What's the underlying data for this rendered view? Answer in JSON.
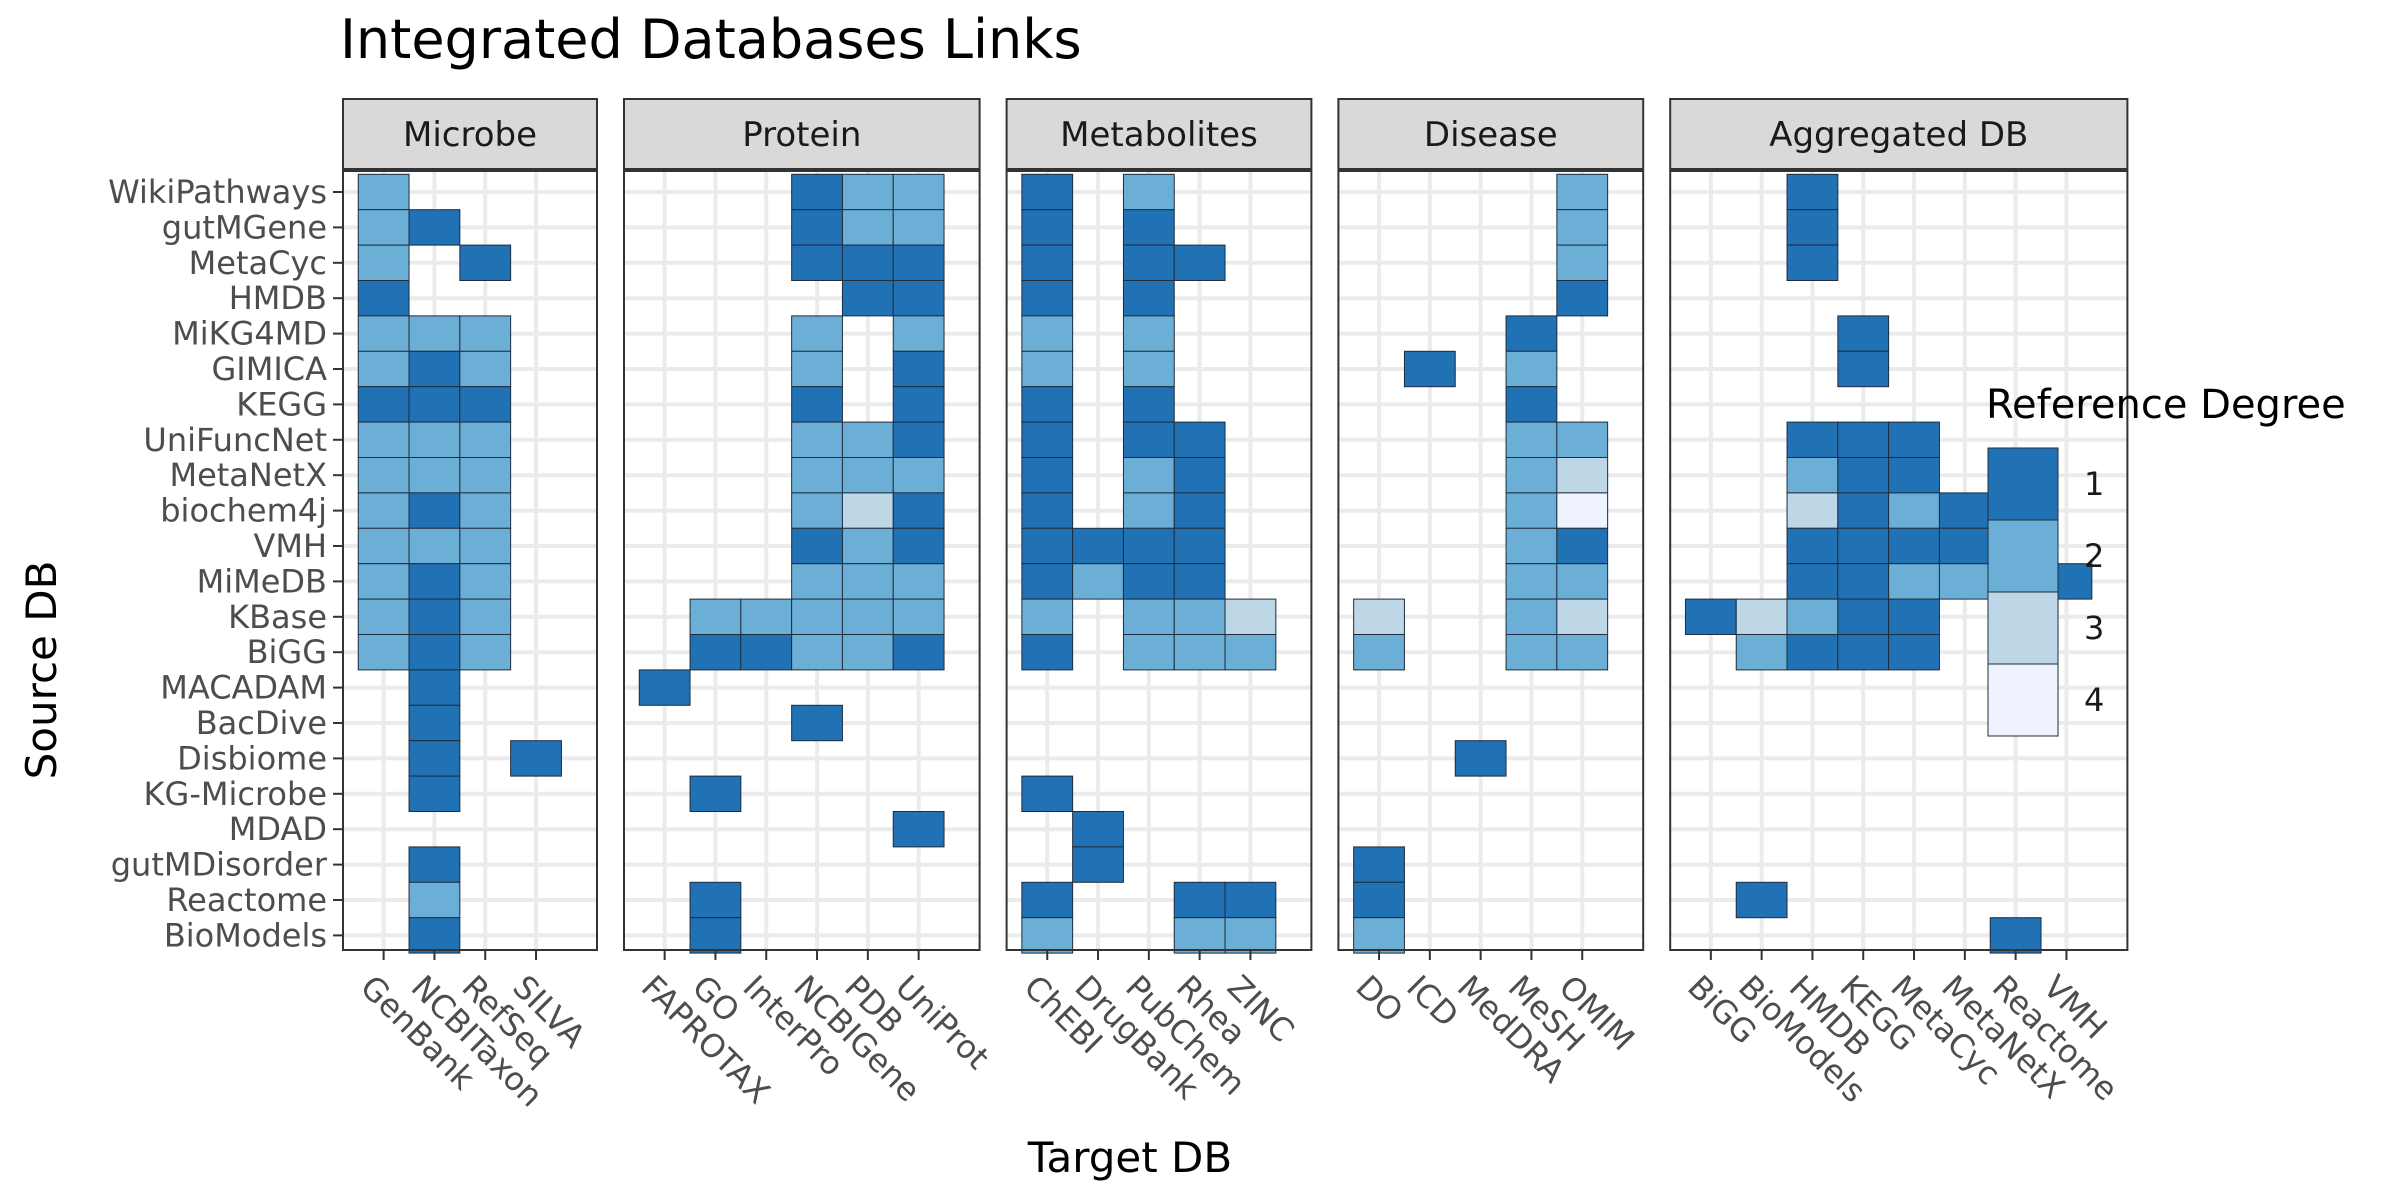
{
  "chart_data": {
    "type": "heatmap",
    "title": "Integrated Databases Links",
    "xlabel": "Target DB",
    "ylabel": "Source DB",
    "legend": {
      "title": "Reference Degree",
      "position": "right",
      "levels": [
        {
          "value": 1,
          "label": "1",
          "color": "#2171b5"
        },
        {
          "value": 2,
          "label": "2",
          "color": "#6baed6"
        },
        {
          "value": 3,
          "label": "3",
          "color": "#bdd7e7"
        },
        {
          "value": 4,
          "label": "4",
          "color": "#eff3ff"
        }
      ]
    },
    "grid": true,
    "rows": [
      "WikiPathways",
      "gutMGene",
      "MetaCyc",
      "HMDB",
      "MiKG4MD",
      "GIMICA",
      "KEGG",
      "UniFuncNet",
      "MetaNetX",
      "biochem4j",
      "VMH",
      "MiMeDB",
      "KBase",
      "BiGG",
      "MACADAM",
      "BacDive",
      "Disbiome",
      "KG-Microbe",
      "MDAD",
      "gutMDisorder",
      "Reactome",
      "BioModels"
    ],
    "facets": [
      {
        "name": "Microbe",
        "columns": [
          "GenBank",
          "NCBITaxon",
          "RefSeq",
          "SILVA"
        ],
        "cells": [
          [
            "WikiPathways",
            "GenBank",
            2
          ],
          [
            "gutMGene",
            "GenBank",
            2
          ],
          [
            "gutMGene",
            "NCBITaxon",
            1
          ],
          [
            "MetaCyc",
            "GenBank",
            2
          ],
          [
            "MetaCyc",
            "RefSeq",
            1
          ],
          [
            "HMDB",
            "GenBank",
            1
          ],
          [
            "MiKG4MD",
            "GenBank",
            2
          ],
          [
            "MiKG4MD",
            "NCBITaxon",
            2
          ],
          [
            "MiKG4MD",
            "RefSeq",
            2
          ],
          [
            "GIMICA",
            "GenBank",
            2
          ],
          [
            "GIMICA",
            "NCBITaxon",
            1
          ],
          [
            "GIMICA",
            "RefSeq",
            2
          ],
          [
            "KEGG",
            "GenBank",
            1
          ],
          [
            "KEGG",
            "NCBITaxon",
            1
          ],
          [
            "KEGG",
            "RefSeq",
            1
          ],
          [
            "UniFuncNet",
            "GenBank",
            2
          ],
          [
            "UniFuncNet",
            "NCBITaxon",
            2
          ],
          [
            "UniFuncNet",
            "RefSeq",
            2
          ],
          [
            "MetaNetX",
            "GenBank",
            2
          ],
          [
            "MetaNetX",
            "NCBITaxon",
            2
          ],
          [
            "MetaNetX",
            "RefSeq",
            2
          ],
          [
            "biochem4j",
            "GenBank",
            2
          ],
          [
            "biochem4j",
            "NCBITaxon",
            1
          ],
          [
            "biochem4j",
            "RefSeq",
            2
          ],
          [
            "VMH",
            "GenBank",
            2
          ],
          [
            "VMH",
            "NCBITaxon",
            2
          ],
          [
            "VMH",
            "RefSeq",
            2
          ],
          [
            "MiMeDB",
            "GenBank",
            2
          ],
          [
            "MiMeDB",
            "NCBITaxon",
            1
          ],
          [
            "MiMeDB",
            "RefSeq",
            2
          ],
          [
            "KBase",
            "GenBank",
            2
          ],
          [
            "KBase",
            "NCBITaxon",
            1
          ],
          [
            "KBase",
            "RefSeq",
            2
          ],
          [
            "BiGG",
            "GenBank",
            2
          ],
          [
            "BiGG",
            "NCBITaxon",
            1
          ],
          [
            "BiGG",
            "RefSeq",
            2
          ],
          [
            "MACADAM",
            "NCBITaxon",
            1
          ],
          [
            "BacDive",
            "NCBITaxon",
            1
          ],
          [
            "Disbiome",
            "NCBITaxon",
            1
          ],
          [
            "Disbiome",
            "SILVA",
            1
          ],
          [
            "KG-Microbe",
            "NCBITaxon",
            1
          ],
          [
            "gutMDisorder",
            "NCBITaxon",
            1
          ],
          [
            "Reactome",
            "NCBITaxon",
            2
          ],
          [
            "BioModels",
            "NCBITaxon",
            1
          ]
        ]
      },
      {
        "name": "Protein",
        "columns": [
          "FAPROTAX",
          "GO",
          "InterPro",
          "NCBIGene",
          "PDB",
          "UniProt"
        ],
        "cells": [
          [
            "WikiPathways",
            "NCBIGene",
            1
          ],
          [
            "WikiPathways",
            "PDB",
            2
          ],
          [
            "WikiPathways",
            "UniProt",
            2
          ],
          [
            "gutMGene",
            "NCBIGene",
            1
          ],
          [
            "gutMGene",
            "PDB",
            2
          ],
          [
            "gutMGene",
            "UniProt",
            2
          ],
          [
            "MetaCyc",
            "NCBIGene",
            1
          ],
          [
            "MetaCyc",
            "PDB",
            1
          ],
          [
            "MetaCyc",
            "UniProt",
            1
          ],
          [
            "HMDB",
            "PDB",
            1
          ],
          [
            "HMDB",
            "UniProt",
            1
          ],
          [
            "MiKG4MD",
            "NCBIGene",
            2
          ],
          [
            "MiKG4MD",
            "UniProt",
            2
          ],
          [
            "GIMICA",
            "NCBIGene",
            2
          ],
          [
            "GIMICA",
            "UniProt",
            1
          ],
          [
            "KEGG",
            "NCBIGene",
            1
          ],
          [
            "KEGG",
            "UniProt",
            1
          ],
          [
            "UniFuncNet",
            "NCBIGene",
            2
          ],
          [
            "UniFuncNet",
            "PDB",
            2
          ],
          [
            "UniFuncNet",
            "UniProt",
            1
          ],
          [
            "MetaNetX",
            "NCBIGene",
            2
          ],
          [
            "MetaNetX",
            "PDB",
            2
          ],
          [
            "MetaNetX",
            "UniProt",
            2
          ],
          [
            "biochem4j",
            "NCBIGene",
            2
          ],
          [
            "biochem4j",
            "PDB",
            3
          ],
          [
            "biochem4j",
            "UniProt",
            1
          ],
          [
            "VMH",
            "NCBIGene",
            1
          ],
          [
            "VMH",
            "PDB",
            2
          ],
          [
            "VMH",
            "UniProt",
            1
          ],
          [
            "MiMeDB",
            "NCBIGene",
            2
          ],
          [
            "MiMeDB",
            "PDB",
            2
          ],
          [
            "MiMeDB",
            "UniProt",
            2
          ],
          [
            "KBase",
            "GO",
            2
          ],
          [
            "KBase",
            "InterPro",
            2
          ],
          [
            "KBase",
            "NCBIGene",
            2
          ],
          [
            "KBase",
            "PDB",
            2
          ],
          [
            "KBase",
            "UniProt",
            2
          ],
          [
            "BiGG",
            "GO",
            1
          ],
          [
            "BiGG",
            "InterPro",
            1
          ],
          [
            "BiGG",
            "NCBIGene",
            2
          ],
          [
            "BiGG",
            "PDB",
            2
          ],
          [
            "BiGG",
            "UniProt",
            1
          ],
          [
            "MACADAM",
            "FAPROTAX",
            1
          ],
          [
            "BacDive",
            "NCBIGene",
            1
          ],
          [
            "KG-Microbe",
            "GO",
            1
          ],
          [
            "MDAD",
            "UniProt",
            1
          ],
          [
            "Reactome",
            "GO",
            1
          ],
          [
            "BioModels",
            "GO",
            1
          ]
        ]
      },
      {
        "name": "Metabolites",
        "columns": [
          "ChEBI",
          "DrugBank",
          "PubChem",
          "Rhea",
          "ZINC"
        ],
        "cells": [
          [
            "WikiPathways",
            "ChEBI",
            1
          ],
          [
            "WikiPathways",
            "PubChem",
            2
          ],
          [
            "gutMGene",
            "ChEBI",
            1
          ],
          [
            "gutMGene",
            "PubChem",
            1
          ],
          [
            "MetaCyc",
            "ChEBI",
            1
          ],
          [
            "MetaCyc",
            "PubChem",
            1
          ],
          [
            "MetaCyc",
            "Rhea",
            1
          ],
          [
            "HMDB",
            "ChEBI",
            1
          ],
          [
            "HMDB",
            "PubChem",
            1
          ],
          [
            "MiKG4MD",
            "ChEBI",
            2
          ],
          [
            "MiKG4MD",
            "PubChem",
            2
          ],
          [
            "GIMICA",
            "ChEBI",
            2
          ],
          [
            "GIMICA",
            "PubChem",
            2
          ],
          [
            "KEGG",
            "ChEBI",
            1
          ],
          [
            "KEGG",
            "PubChem",
            1
          ],
          [
            "UniFuncNet",
            "ChEBI",
            1
          ],
          [
            "UniFuncNet",
            "PubChem",
            1
          ],
          [
            "UniFuncNet",
            "Rhea",
            1
          ],
          [
            "MetaNetX",
            "ChEBI",
            1
          ],
          [
            "MetaNetX",
            "PubChem",
            2
          ],
          [
            "MetaNetX",
            "Rhea",
            1
          ],
          [
            "biochem4j",
            "ChEBI",
            1
          ],
          [
            "biochem4j",
            "PubChem",
            2
          ],
          [
            "biochem4j",
            "Rhea",
            1
          ],
          [
            "VMH",
            "ChEBI",
            1
          ],
          [
            "VMH",
            "DrugBank",
            1
          ],
          [
            "VMH",
            "PubChem",
            1
          ],
          [
            "VMH",
            "Rhea",
            1
          ],
          [
            "MiMeDB",
            "ChEBI",
            1
          ],
          [
            "MiMeDB",
            "DrugBank",
            2
          ],
          [
            "MiMeDB",
            "PubChem",
            1
          ],
          [
            "MiMeDB",
            "Rhea",
            1
          ],
          [
            "KBase",
            "ChEBI",
            2
          ],
          [
            "KBase",
            "PubChem",
            2
          ],
          [
            "KBase",
            "Rhea",
            2
          ],
          [
            "KBase",
            "ZINC",
            3
          ],
          [
            "BiGG",
            "ChEBI",
            1
          ],
          [
            "BiGG",
            "PubChem",
            2
          ],
          [
            "BiGG",
            "Rhea",
            2
          ],
          [
            "BiGG",
            "ZINC",
            2
          ],
          [
            "KG-Microbe",
            "ChEBI",
            1
          ],
          [
            "MDAD",
            "DrugBank",
            1
          ],
          [
            "gutMDisorder",
            "DrugBank",
            1
          ],
          [
            "Reactome",
            "ChEBI",
            1
          ],
          [
            "Reactome",
            "Rhea",
            1
          ],
          [
            "Reactome",
            "ZINC",
            1
          ],
          [
            "BioModels",
            "ChEBI",
            2
          ],
          [
            "BioModels",
            "Rhea",
            2
          ],
          [
            "BioModels",
            "ZINC",
            2
          ]
        ]
      },
      {
        "name": "Disease",
        "columns": [
          "DO",
          "ICD",
          "MedDRA",
          "MeSH",
          "OMIM"
        ],
        "cells": [
          [
            "WikiPathways",
            "OMIM",
            2
          ],
          [
            "gutMGene",
            "OMIM",
            2
          ],
          [
            "MetaCyc",
            "OMIM",
            2
          ],
          [
            "HMDB",
            "OMIM",
            1
          ],
          [
            "MiKG4MD",
            "MeSH",
            1
          ],
          [
            "GIMICA",
            "ICD",
            1
          ],
          [
            "GIMICA",
            "MeSH",
            2
          ],
          [
            "KEGG",
            "MeSH",
            1
          ],
          [
            "UniFuncNet",
            "MeSH",
            2
          ],
          [
            "UniFuncNet",
            "OMIM",
            2
          ],
          [
            "MetaNetX",
            "MeSH",
            2
          ],
          [
            "MetaNetX",
            "OMIM",
            3
          ],
          [
            "biochem4j",
            "MeSH",
            2
          ],
          [
            "biochem4j",
            "OMIM",
            4
          ],
          [
            "VMH",
            "MeSH",
            2
          ],
          [
            "VMH",
            "OMIM",
            1
          ],
          [
            "MiMeDB",
            "MeSH",
            2
          ],
          [
            "MiMeDB",
            "OMIM",
            2
          ],
          [
            "KBase",
            "DO",
            3
          ],
          [
            "KBase",
            "MeSH",
            2
          ],
          [
            "KBase",
            "OMIM",
            3
          ],
          [
            "BiGG",
            "DO",
            2
          ],
          [
            "BiGG",
            "MeSH",
            2
          ],
          [
            "BiGG",
            "OMIM",
            2
          ],
          [
            "Disbiome",
            "MedDRA",
            1
          ],
          [
            "gutMDisorder",
            "DO",
            1
          ],
          [
            "Reactome",
            "DO",
            1
          ],
          [
            "BioModels",
            "DO",
            2
          ]
        ]
      },
      {
        "name": "Aggregated DB",
        "columns": [
          "BiGG",
          "BioModels",
          "HMDB",
          "KEGG",
          "MetaCyc",
          "MetaNetX",
          "Reactome",
          "VMH"
        ],
        "cells": [
          [
            "WikiPathways",
            "HMDB",
            1
          ],
          [
            "gutMGene",
            "HMDB",
            1
          ],
          [
            "MetaCyc",
            "HMDB",
            1
          ],
          [
            "MiKG4MD",
            "KEGG",
            1
          ],
          [
            "GIMICA",
            "KEGG",
            1
          ],
          [
            "UniFuncNet",
            "HMDB",
            1
          ],
          [
            "UniFuncNet",
            "KEGG",
            1
          ],
          [
            "UniFuncNet",
            "MetaCyc",
            1
          ],
          [
            "MetaNetX",
            "HMDB",
            2
          ],
          [
            "MetaNetX",
            "KEGG",
            1
          ],
          [
            "MetaNetX",
            "MetaCyc",
            1
          ],
          [
            "biochem4j",
            "HMDB",
            3
          ],
          [
            "biochem4j",
            "KEGG",
            1
          ],
          [
            "biochem4j",
            "MetaCyc",
            2
          ],
          [
            "biochem4j",
            "MetaNetX",
            1
          ],
          [
            "VMH",
            "HMDB",
            1
          ],
          [
            "VMH",
            "KEGG",
            1
          ],
          [
            "VMH",
            "MetaCyc",
            1
          ],
          [
            "VMH",
            "MetaNetX",
            1
          ],
          [
            "MiMeDB",
            "HMDB",
            1
          ],
          [
            "MiMeDB",
            "KEGG",
            1
          ],
          [
            "MiMeDB",
            "MetaCyc",
            2
          ],
          [
            "MiMeDB",
            "MetaNetX",
            2
          ],
          [
            "MiMeDB",
            "VMH",
            1
          ],
          [
            "KBase",
            "BiGG",
            1
          ],
          [
            "KBase",
            "BioModels",
            3
          ],
          [
            "KBase",
            "HMDB",
            2
          ],
          [
            "KBase",
            "KEGG",
            1
          ],
          [
            "KBase",
            "MetaCyc",
            1
          ],
          [
            "KBase",
            "Reactome",
            2
          ],
          [
            "BiGG",
            "BioModels",
            2
          ],
          [
            "BiGG",
            "HMDB",
            1
          ],
          [
            "BiGG",
            "KEGG",
            1
          ],
          [
            "BiGG",
            "MetaCyc",
            1
          ],
          [
            "BiGG",
            "Reactome",
            1
          ],
          [
            "Reactome",
            "BioModels",
            1
          ],
          [
            "BioModels",
            "Reactome",
            1
          ]
        ]
      }
    ]
  }
}
